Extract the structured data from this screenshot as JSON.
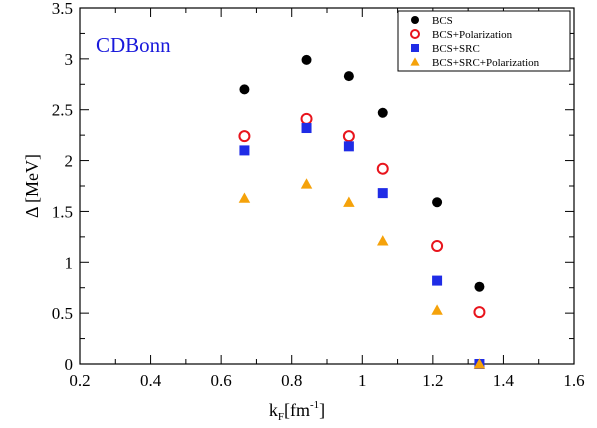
{
  "chart_data": {
    "type": "scatter",
    "annotation": {
      "text": "CDBonn",
      "color": "#1a1adb"
    },
    "xlabel": {
      "main": "k",
      "sub": "F",
      "rest": "[fm",
      "sup": "-1",
      "close": "]"
    },
    "ylabel": "Δ [MeV]",
    "xlim": [
      0.2,
      1.6
    ],
    "ylim": [
      0,
      3.5
    ],
    "xticks": [
      "0.2",
      "0.4",
      "0.6",
      "0.8",
      "1",
      "1.2",
      "1.4",
      "1.6"
    ],
    "yticks": [
      "0",
      "0.5",
      "1",
      "1.5",
      "2",
      "2.5",
      "3",
      "3.5"
    ],
    "x": [
      0.666,
      0.842,
      0.962,
      1.058,
      1.212,
      1.332
    ],
    "grid": false,
    "legend_position": "top-right",
    "series": [
      {
        "name": "BCS",
        "marker": "filled-circle",
        "color": "#000000",
        "values": [
          2.7,
          2.99,
          2.83,
          2.47,
          1.59,
          0.76
        ]
      },
      {
        "name": "BCS+Polarization",
        "marker": "open-circle",
        "color": "#e8141c",
        "values": [
          2.24,
          2.41,
          2.24,
          1.92,
          1.16,
          0.51
        ]
      },
      {
        "name": "BCS+SRC",
        "marker": "filled-square",
        "color": "#1f2ce6",
        "values": [
          2.1,
          2.32,
          2.14,
          1.68,
          0.82,
          0.0
        ]
      },
      {
        "name": "BCS+SRC+Polarization",
        "marker": "filled-triangle",
        "color": "#f5a20a",
        "values": [
          1.63,
          1.77,
          1.59,
          1.21,
          0.53,
          0.0
        ]
      }
    ]
  }
}
